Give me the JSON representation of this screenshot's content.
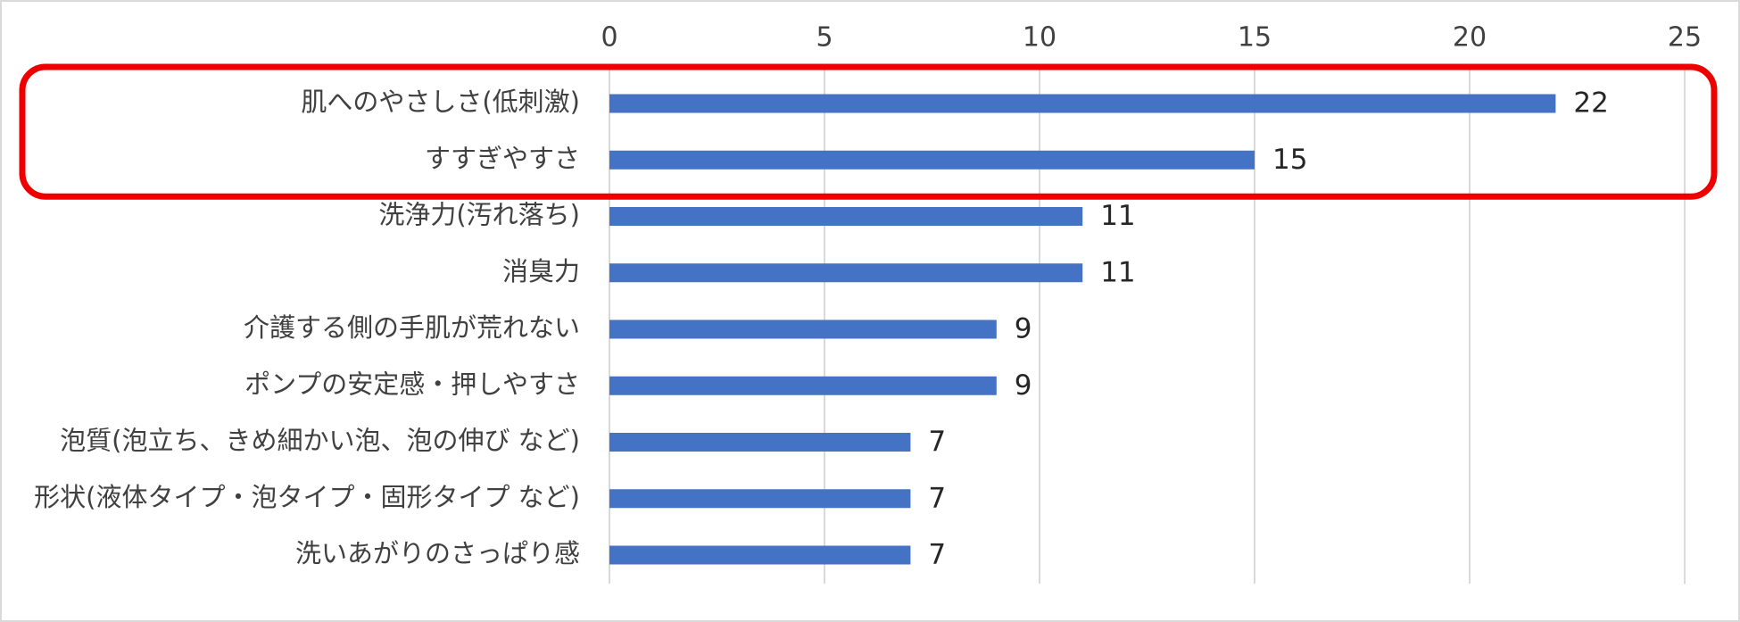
{
  "chart_data": {
    "type": "bar",
    "orientation": "horizontal",
    "title": "",
    "xlabel": "",
    "ylabel": "",
    "xlim": [
      0,
      25
    ],
    "x_ticks": [
      0,
      5,
      10,
      15,
      20,
      25
    ],
    "x_tick_labels": [
      "0",
      "5",
      "10",
      "15",
      "20",
      "25"
    ],
    "x_axis_position": "top",
    "grid": true,
    "legend": "none",
    "categories": [
      "肌へのやさしさ(低刺激)",
      "すすぎやすさ",
      "洗浄力(汚れ落ち)",
      "消臭力",
      "介護する側の手肌が荒れない",
      "ポンプの安定感・押しやすさ",
      "泡質(泡立ち、きめ細かい泡、泡の伸び など)",
      "形状(液体タイプ・泡タイプ・固形タイプ など)",
      "洗いあがりのさっぱり感"
    ],
    "values": [
      22,
      15,
      11,
      11,
      9,
      9,
      7,
      7,
      7
    ],
    "data_labels": [
      "22",
      "15",
      "11",
      "11",
      "9",
      "9",
      "7",
      "7",
      "7"
    ],
    "bar_color": "#4472c4",
    "grid_color": "#d9d9d9",
    "highlight": {
      "categories": [
        0,
        1
      ],
      "color": "#ee0000"
    }
  }
}
